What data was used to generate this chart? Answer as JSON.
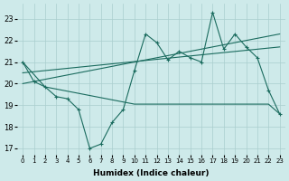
{
  "xlabel": "Humidex (Indice chaleur)",
  "line_zigzag1": [
    [
      0,
      21.0
    ],
    [
      1,
      20.1
    ],
    [
      2,
      19.85
    ],
    [
      3,
      19.4
    ],
    [
      4,
      19.3
    ],
    [
      5,
      18.8
    ],
    [
      6,
      17.0
    ],
    [
      7,
      17.2
    ],
    [
      8,
      18.2
    ],
    [
      9,
      18.8
    ],
    [
      10,
      20.6
    ],
    [
      11,
      22.3
    ],
    [
      12,
      21.9
    ],
    [
      13,
      21.1
    ],
    [
      14,
      21.5
    ],
    [
      15,
      21.2
    ],
    [
      16,
      21.0
    ],
    [
      17,
      23.3
    ],
    [
      18,
      21.6
    ],
    [
      19,
      22.3
    ],
    [
      20,
      21.7
    ],
    [
      21,
      21.2
    ],
    [
      22,
      19.7
    ],
    [
      23,
      18.6
    ]
  ],
  "line_zigzag2": [
    [
      10,
      20.6
    ],
    [
      11,
      21.9
    ],
    [
      12,
      21.5
    ],
    [
      13,
      21.1
    ],
    [
      14,
      21.5
    ],
    [
      15,
      21.2
    ],
    [
      16,
      21.0
    ],
    [
      17,
      23.3
    ],
    [
      18,
      21.6
    ],
    [
      19,
      22.3
    ],
    [
      20,
      21.7
    ],
    [
      21,
      21.2
    ],
    [
      22,
      19.7
    ],
    [
      23,
      18.6
    ]
  ],
  "line_flat": [
    [
      0,
      21.0
    ],
    [
      2,
      19.85
    ],
    [
      10,
      19.05
    ],
    [
      11,
      19.05
    ],
    [
      12,
      19.05
    ],
    [
      13,
      19.05
    ],
    [
      14,
      19.05
    ],
    [
      15,
      19.05
    ],
    [
      16,
      19.05
    ],
    [
      17,
      19.05
    ],
    [
      18,
      19.05
    ],
    [
      19,
      19.05
    ],
    [
      20,
      19.05
    ],
    [
      21,
      19.05
    ],
    [
      22,
      19.05
    ],
    [
      23,
      18.6
    ]
  ],
  "line_trend1": [
    [
      0,
      20.0
    ],
    [
      23,
      22.3
    ]
  ],
  "line_trend2": [
    [
      0,
      20.5
    ],
    [
      23,
      21.7
    ]
  ],
  "ylim": [
    16.7,
    23.7
  ],
  "yticks": [
    17,
    18,
    19,
    20,
    21,
    22,
    23
  ],
  "xticks": [
    0,
    1,
    2,
    3,
    4,
    5,
    6,
    7,
    8,
    9,
    10,
    11,
    12,
    13,
    14,
    15,
    16,
    17,
    18,
    19,
    20,
    21,
    22,
    23
  ],
  "line_color": "#1a6b5e",
  "bg_color": "#ceeaea",
  "grid_color": "#aacece"
}
